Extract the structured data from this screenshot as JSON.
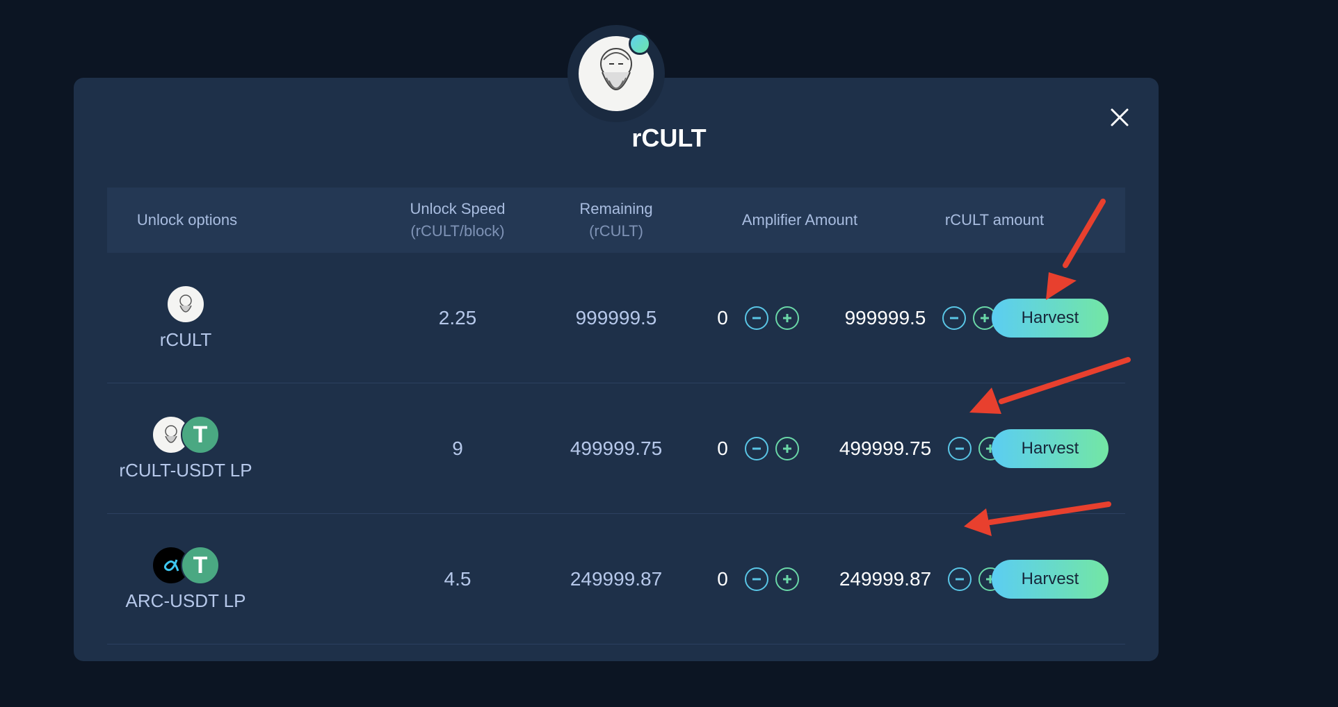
{
  "modal": {
    "title": "rCULT",
    "avatar_icon": "bearded-philosopher-icon",
    "close_icon": "close-icon"
  },
  "table": {
    "headers": [
      {
        "label": "Unlock options",
        "sub": ""
      },
      {
        "label": "Unlock Speed",
        "sub": "(rCULT/block)"
      },
      {
        "label": "Remaining",
        "sub": "(rCULT)"
      },
      {
        "label": "Amplifier Amount",
        "sub": ""
      },
      {
        "label": "rCULT amount",
        "sub": ""
      }
    ],
    "rows": [
      {
        "name": "rCULT",
        "speed": "2.25",
        "remaining": "999999.5",
        "amplifier": "0",
        "amount": "999999.5",
        "action": "Harvest"
      },
      {
        "name": "rCULT-USDT LP",
        "speed": "9",
        "remaining": "499999.75",
        "amplifier": "0",
        "amount": "499999.75",
        "action": "Harvest"
      },
      {
        "name": "ARC-USDT LP",
        "speed": "4.5",
        "remaining": "249999.87",
        "amplifier": "0",
        "amount": "249999.87",
        "action": "Harvest"
      }
    ]
  },
  "colors": {
    "background": "#0c1523",
    "modal": "#1e3049",
    "header_row": "#243854",
    "accent_cyan": "#5bcdf2",
    "accent_green": "#73e6a4",
    "annotation_arrow": "#e8402e"
  }
}
